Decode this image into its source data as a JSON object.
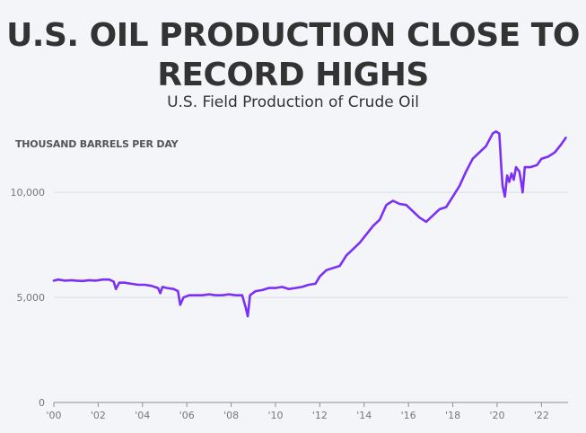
{
  "chart_data": {
    "type": "line",
    "title": "U.S. OIL PRODUCTION CLOSE TO RECORD HIGHS",
    "subtitle": "U.S. Field Production of Crude Oil",
    "ylabel": "THOUSAND BARRELS PER DAY",
    "xlabel": "",
    "xlim": [
      2000,
      2023.2
    ],
    "ylim": [
      0,
      13000
    ],
    "yticks": [
      0,
      5000,
      10000
    ],
    "ytick_labels": [
      "0",
      "5,000",
      "10,000"
    ],
    "xticks": [
      2000,
      2002,
      2004,
      2006,
      2008,
      2010,
      2012,
      2014,
      2016,
      2018,
      2020,
      2022
    ],
    "xtick_labels": [
      "'00",
      "'02",
      "'04",
      "'06",
      "'08",
      "'10",
      "'12",
      "'14",
      "'16",
      "'18",
      "'20",
      "'22"
    ],
    "grid": "horizontal",
    "line_color": "#7b2ff7",
    "series": [
      {
        "name": "",
        "x": [
          2000.0,
          2000.2,
          2000.5,
          2000.8,
          2001.0,
          2001.3,
          2001.6,
          2001.9,
          2002.2,
          2002.5,
          2002.7,
          2002.8,
          2002.95,
          2003.2,
          2003.5,
          2003.8,
          2004.1,
          2004.4,
          2004.7,
          2004.8,
          2004.9,
          2005.1,
          2005.4,
          2005.6,
          2005.7,
          2005.85,
          2006.1,
          2006.4,
          2006.7,
          2007.0,
          2007.3,
          2007.6,
          2007.9,
          2008.2,
          2008.5,
          2008.65,
          2008.75,
          2008.85,
          2009.1,
          2009.4,
          2009.7,
          2010.0,
          2010.3,
          2010.6,
          2010.9,
          2011.2,
          2011.5,
          2011.8,
          2012.0,
          2012.3,
          2012.6,
          2012.9,
          2013.2,
          2013.5,
          2013.8,
          2014.1,
          2014.4,
          2014.7,
          2015.0,
          2015.3,
          2015.6,
          2015.9,
          2016.2,
          2016.5,
          2016.8,
          2017.1,
          2017.4,
          2017.7,
          2018.0,
          2018.3,
          2018.6,
          2018.9,
          2019.2,
          2019.5,
          2019.8,
          2019.95,
          2020.1,
          2020.2,
          2020.25,
          2020.35,
          2020.45,
          2020.55,
          2020.65,
          2020.75,
          2020.85,
          2021.0,
          2021.1,
          2021.15,
          2021.25,
          2021.5,
          2021.8,
          2022.0,
          2022.3,
          2022.6,
          2022.9,
          2023.1
        ],
        "values": [
          5800,
          5850,
          5800,
          5820,
          5800,
          5780,
          5820,
          5800,
          5850,
          5850,
          5750,
          5400,
          5700,
          5700,
          5650,
          5600,
          5600,
          5550,
          5450,
          5200,
          5500,
          5450,
          5400,
          5300,
          4650,
          5000,
          5100,
          5100,
          5100,
          5150,
          5100,
          5100,
          5150,
          5100,
          5100,
          4550,
          4100,
          5100,
          5300,
          5350,
          5450,
          5450,
          5500,
          5400,
          5450,
          5500,
          5600,
          5650,
          6000,
          6300,
          6400,
          6500,
          7000,
          7300,
          7600,
          8000,
          8400,
          8700,
          9400,
          9600,
          9450,
          9400,
          9100,
          8800,
          8600,
          8900,
          9200,
          9300,
          9800,
          10300,
          11000,
          11600,
          11900,
          12200,
          12800,
          12900,
          12800,
          11000,
          10300,
          9800,
          10800,
          10500,
          10900,
          10600,
          11200,
          11000,
          10400,
          10000,
          11200,
          11200,
          11300,
          11600,
          11700,
          11900,
          12300,
          12600
        ]
      }
    ]
  }
}
